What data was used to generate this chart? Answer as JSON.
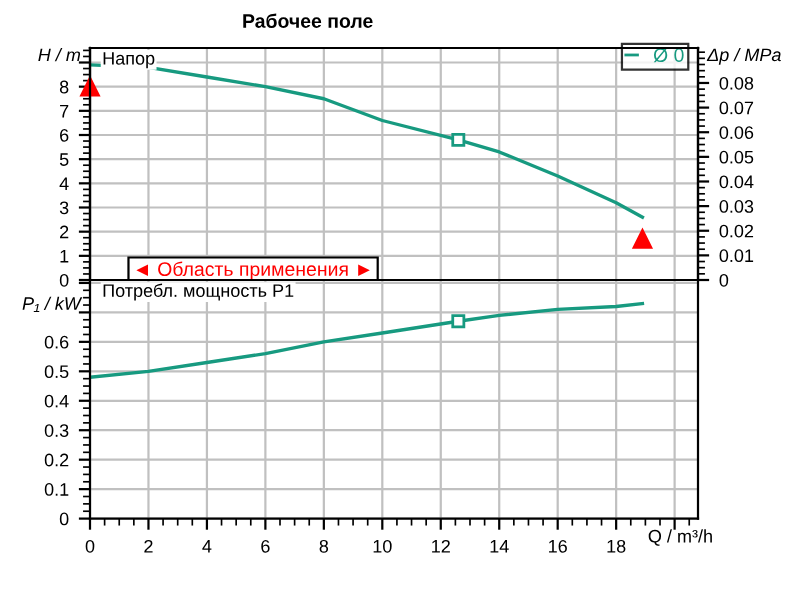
{
  "chart_data": [
    {
      "type": "line",
      "title": "Рабочее поле",
      "ylabel": "H / m",
      "y2label": "Δp / MPa",
      "xlim": [
        0,
        20.8
      ],
      "xticks": [
        0,
        2,
        4,
        6,
        8,
        10,
        12,
        14,
        16,
        18,
        20
      ],
      "ylim": [
        0,
        9.6
      ],
      "yticks": [
        0,
        1,
        2,
        3,
        4,
        5,
        6,
        7,
        8,
        {
          "value": 9,
          "label": null
        }
      ],
      "y2lim": [
        0,
        0.0942
      ],
      "y2ticks": [
        0,
        0.01,
        0.02,
        0.03,
        0.04,
        0.05,
        0.06,
        0.07,
        0.08
      ],
      "tick_labels": "y",
      "grid": true,
      "legend": "top right",
      "annotations": [
        "Напор",
        "◄ Область применения ►"
      ],
      "series": [
        {
          "name": "Ø 0",
          "color": "#179a80",
          "x": [
            0,
            2,
            4,
            6,
            8,
            10,
            12.6,
            14,
            16,
            18,
            18.9
          ],
          "values": [
            8.9,
            8.8,
            8.4,
            8.0,
            7.5,
            6.6,
            5.8,
            5.3,
            4.3,
            3.2,
            2.6
          ]
        },
        {
          "type": "scatter",
          "marker": "square",
          "color": "#179a80",
          "x": [
            12.6
          ],
          "values": [
            5.8
          ]
        },
        {
          "type": "scatter",
          "marker": "triangle",
          "color": "#ff0000",
          "x": [
            0,
            18.9
          ],
          "values": [
            8.0,
            1.7
          ]
        }
      ]
    },
    {
      "type": "line",
      "xlabel": "Q / m³/h",
      "ylabel": "P₁ / kW",
      "xlim": [
        0,
        20.8
      ],
      "xticks": [
        0,
        2,
        4,
        6,
        8,
        10,
        12,
        14,
        16,
        18,
        {
          "value": 20,
          "label": null
        }
      ],
      "ylim": [
        0,
        0.81
      ],
      "yticks": [
        0,
        0.1,
        0.2,
        0.3,
        0.4,
        0.5,
        0.6,
        {
          "value": 0.7,
          "label": null
        },
        {
          "value": 0.8,
          "label": null
        }
      ],
      "grid": true,
      "annotations": [
        "Потребл. мощность P1"
      ],
      "series": [
        {
          "color": "#179a80",
          "x": [
            0,
            2,
            4,
            6,
            8,
            10,
            12.6,
            14,
            16,
            18,
            18.9
          ],
          "values": [
            0.48,
            0.5,
            0.53,
            0.56,
            0.6,
            0.63,
            0.67,
            0.69,
            0.71,
            0.72,
            0.73
          ]
        },
        {
          "type": "scatter",
          "marker": "square",
          "color": "#179a80",
          "x": [
            12.6
          ],
          "values": [
            0.67
          ]
        }
      ]
    }
  ]
}
